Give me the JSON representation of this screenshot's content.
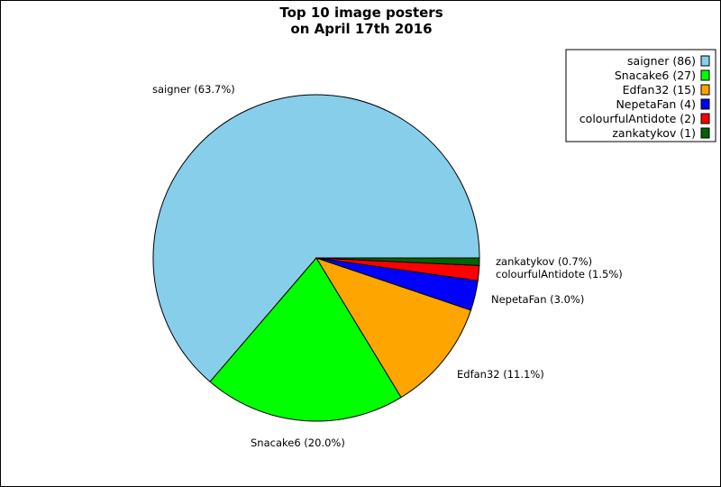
{
  "chart_data": {
    "type": "pie",
    "title_lines": [
      "Top 10 image posters",
      "on April 17th 2016"
    ],
    "slices": [
      {
        "name": "saigner",
        "value": 86,
        "percent_label": "saigner (63.7%)",
        "legend_label": "saigner (86)",
        "color": "#87ceeb"
      },
      {
        "name": "Snacake6",
        "value": 27,
        "percent_label": "Snacake6 (20.0%)",
        "legend_label": "Snacake6 (27)",
        "color": "#00ff00"
      },
      {
        "name": "Edfan32",
        "value": 15,
        "percent_label": "Edfan32 (11.1%)",
        "legend_label": "Edfan32 (15)",
        "color": "#ffa500"
      },
      {
        "name": "NepetaFan",
        "value": 4,
        "percent_label": "NepetaFan (3.0%)",
        "legend_label": "NepetaFan (4)",
        "color": "#0000ff"
      },
      {
        "name": "colourfulAntidote",
        "value": 2,
        "percent_label": "colourfulAntidote (1.5%)",
        "legend_label": "colourfulAntidote (2)",
        "color": "#ff0000"
      },
      {
        "name": "zankatykov",
        "value": 1,
        "percent_label": "zankatykov (0.7%)",
        "legend_label": "zankatykov (1)",
        "color": "#006400"
      }
    ],
    "legend_position": "top-right"
  }
}
